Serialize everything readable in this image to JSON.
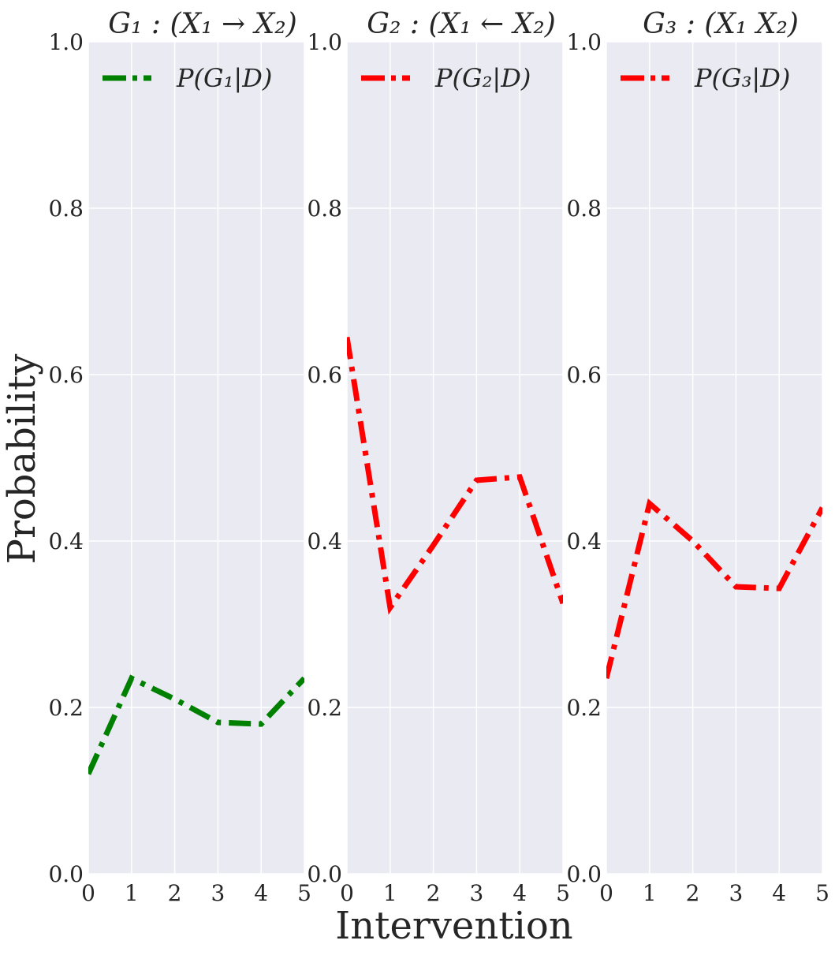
{
  "chart_data": {
    "type": "line",
    "shared": {
      "xlabel": "Intervention",
      "ylabel": "Probability",
      "xlim": [
        0,
        5
      ],
      "ylim": [
        0,
        1.0
      ],
      "x_ticks": [
        "0",
        "1",
        "2",
        "3",
        "4",
        "5"
      ],
      "y_ticks": [
        "0.0",
        "0.2",
        "0.4",
        "0.6",
        "0.8",
        "1.0"
      ],
      "grid": true,
      "legend_position": "top-left",
      "line_style": "dash-dot"
    },
    "panels": [
      {
        "title": "G₁ : (X₁ → X₂)",
        "series": [
          {
            "name": "P(G₁|D)",
            "color": "#008000",
            "x": [
              0,
              1,
              2,
              3,
              4,
              5
            ],
            "y": [
              0.12,
              0.235,
              0.21,
              0.182,
              0.18,
              0.235
            ]
          }
        ]
      },
      {
        "title": "G₂ : (X₁ ← X₂)",
        "series": [
          {
            "name": "P(G₂|D)",
            "color": "#ff0000",
            "x": [
              0,
              1,
              2,
              3,
              4,
              5
            ],
            "y": [
              0.645,
              0.32,
              0.395,
              0.473,
              0.477,
              0.325
            ]
          }
        ]
      },
      {
        "title": "G₃ : (X₁ X₂)",
        "series": [
          {
            "name": "P(G₃|D)",
            "color": "#ff0000",
            "x": [
              0,
              1,
              2,
              3,
              4,
              5
            ],
            "y": [
              0.235,
              0.445,
              0.4,
              0.345,
              0.343,
              0.44
            ]
          }
        ]
      }
    ]
  }
}
